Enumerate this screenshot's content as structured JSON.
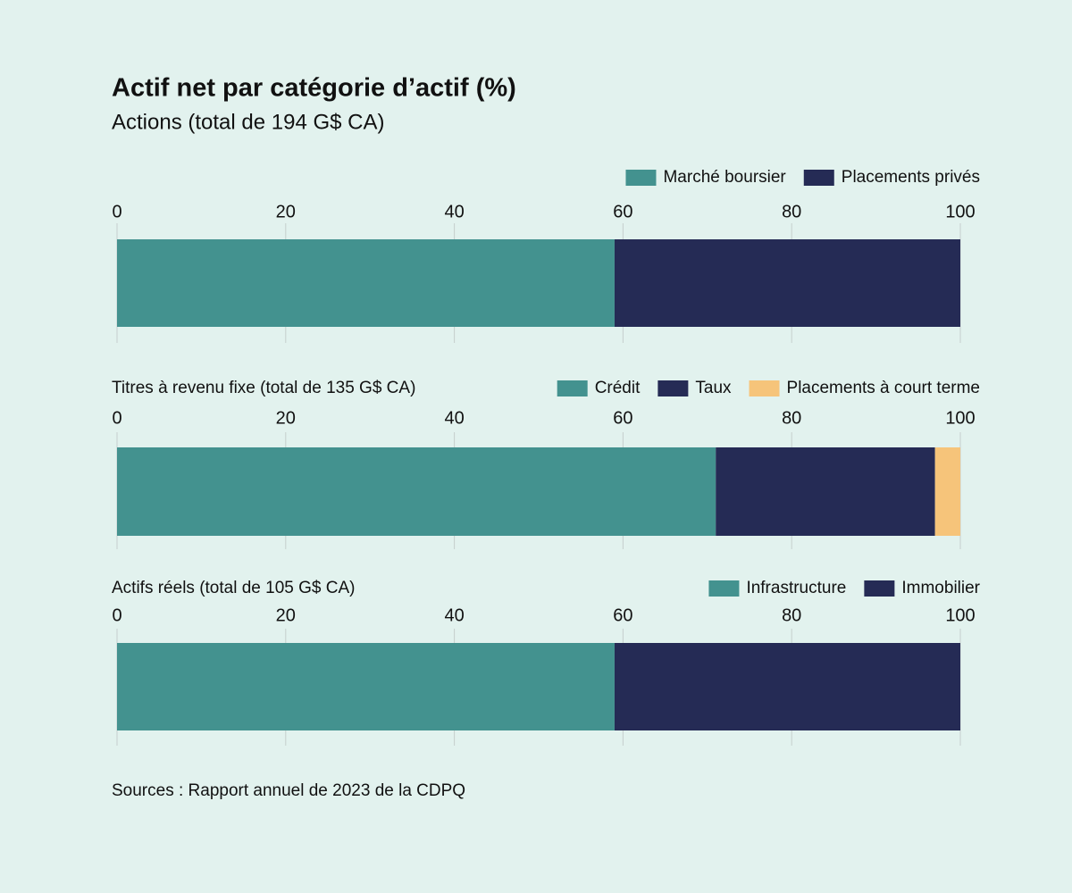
{
  "title": "Actif net par catégorie d’actif (%)",
  "source": "Sources : Rapport annuel de 2023 de la CDPQ",
  "chart_data": [
    {
      "type": "bar",
      "orientation": "horizontal",
      "stacked": true,
      "title": "Actions (total de 194 G$ CA)",
      "categories": [
        null
      ],
      "xlim": [
        0,
        100
      ],
      "xticks": [
        0,
        20,
        40,
        60,
        80,
        100
      ],
      "grid": true,
      "legend": "top-right",
      "series": [
        {
          "name": "Marché boursier",
          "color": "#43928f",
          "values": [
            59
          ]
        },
        {
          "name": "Placements privés",
          "color": "#252b55",
          "values": [
            41
          ]
        }
      ]
    },
    {
      "type": "bar",
      "orientation": "horizontal",
      "stacked": true,
      "title": "Titres à revenu fixe (total de 135 G$ CA)",
      "categories": [
        null
      ],
      "xlim": [
        0,
        100
      ],
      "xticks": [
        0,
        20,
        40,
        60,
        80,
        100
      ],
      "grid": true,
      "legend": "top-right",
      "series": [
        {
          "name": "Crédit",
          "color": "#43928f",
          "values": [
            71
          ]
        },
        {
          "name": "Taux",
          "color": "#252b55",
          "values": [
            26
          ]
        },
        {
          "name": "Placements à court terme",
          "color": "#f6c47a",
          "values": [
            3
          ]
        }
      ]
    },
    {
      "type": "bar",
      "orientation": "horizontal",
      "stacked": true,
      "title": "Actifs réels (total de 105 G$ CA)",
      "categories": [
        null
      ],
      "xlim": [
        0,
        100
      ],
      "xticks": [
        0,
        20,
        40,
        60,
        80,
        100
      ],
      "grid": true,
      "legend": "top-right",
      "series": [
        {
          "name": "Infrastructure",
          "color": "#43928f",
          "values": [
            59
          ]
        },
        {
          "name": "Immobilier",
          "color": "#252b55",
          "values": [
            41
          ]
        }
      ]
    }
  ]
}
